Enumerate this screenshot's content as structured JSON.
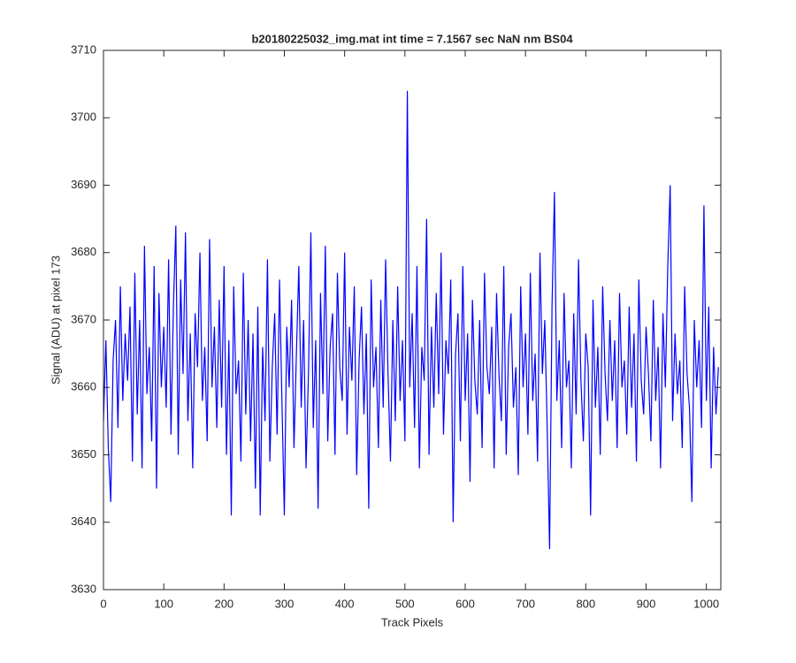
{
  "chart_data": {
    "type": "line",
    "title": "b20180225032_img.mat int time = 7.1567 sec  NaN nm BS04",
    "xlabel": "Track Pixels",
    "ylabel": "Signal (ADU) at pixel 173",
    "color": "#0000ff",
    "xlim": [
      0,
      1024
    ],
    "xticks": [
      0,
      100,
      200,
      300,
      400,
      500,
      600,
      700,
      800,
      900,
      1000
    ],
    "ylim": [
      3630,
      3710
    ],
    "yticks": [
      3630,
      3640,
      3650,
      3660,
      3670,
      3680,
      3690,
      3700,
      3710
    ],
    "grid": false,
    "x": [
      0,
      4,
      8,
      12,
      16,
      20,
      24,
      28,
      32,
      36,
      40,
      44,
      48,
      52,
      56,
      60,
      64,
      68,
      72,
      76,
      80,
      84,
      88,
      92,
      96,
      100,
      104,
      108,
      112,
      116,
      120,
      124,
      128,
      132,
      136,
      140,
      144,
      148,
      152,
      156,
      160,
      164,
      168,
      172,
      176,
      180,
      184,
      188,
      192,
      196,
      200,
      204,
      208,
      212,
      216,
      220,
      224,
      228,
      232,
      236,
      240,
      244,
      248,
      252,
      256,
      260,
      264,
      268,
      272,
      276,
      280,
      284,
      288,
      292,
      296,
      300,
      304,
      308,
      312,
      316,
      320,
      324,
      328,
      332,
      336,
      340,
      344,
      348,
      352,
      356,
      360,
      364,
      368,
      372,
      376,
      380,
      384,
      388,
      392,
      396,
      400,
      404,
      408,
      412,
      416,
      420,
      424,
      428,
      432,
      436,
      440,
      444,
      448,
      452,
      456,
      460,
      464,
      468,
      472,
      476,
      480,
      484,
      488,
      492,
      496,
      500,
      504,
      508,
      512,
      516,
      520,
      524,
      528,
      532,
      536,
      540,
      544,
      548,
      552,
      556,
      560,
      564,
      568,
      572,
      576,
      580,
      584,
      588,
      592,
      596,
      600,
      604,
      608,
      612,
      616,
      620,
      624,
      628,
      632,
      636,
      640,
      644,
      648,
      652,
      656,
      660,
      664,
      668,
      672,
      676,
      680,
      684,
      688,
      692,
      696,
      700,
      704,
      708,
      712,
      716,
      720,
      724,
      728,
      732,
      736,
      740,
      744,
      748,
      752,
      756,
      760,
      764,
      768,
      772,
      776,
      780,
      784,
      788,
      792,
      796,
      800,
      804,
      808,
      812,
      816,
      820,
      824,
      828,
      832,
      836,
      840,
      844,
      848,
      852,
      856,
      860,
      864,
      868,
      872,
      876,
      880,
      884,
      888,
      892,
      896,
      900,
      904,
      908,
      912,
      916,
      920,
      924,
      928,
      932,
      936,
      940,
      944,
      948,
      952,
      956,
      960,
      964,
      968,
      972,
      976,
      980,
      984,
      988,
      992,
      996,
      1000,
      1004,
      1008,
      1012,
      1016,
      1020
    ],
    "values": [
      3655,
      3667,
      3651,
      3643,
      3664,
      3670,
      3654,
      3675,
      3658,
      3668,
      3661,
      3672,
      3649,
      3677,
      3656,
      3670,
      3648,
      3681,
      3659,
      3666,
      3652,
      3678,
      3645,
      3674,
      3660,
      3669,
      3657,
      3679,
      3653,
      3672,
      3684,
      3650,
      3676,
      3662,
      3683,
      3655,
      3668,
      3648,
      3671,
      3663,
      3680,
      3658,
      3666,
      3652,
      3682,
      3660,
      3669,
      3654,
      3673,
      3657,
      3678,
      3650,
      3667,
      3641,
      3675,
      3659,
      3664,
      3649,
      3677,
      3656,
      3670,
      3652,
      3668,
      3645,
      3672,
      3641,
      3666,
      3655,
      3679,
      3649,
      3663,
      3671,
      3653,
      3676,
      3658,
      3641,
      3669,
      3660,
      3673,
      3651,
      3665,
      3678,
      3657,
      3670,
      3648,
      3662,
      3683,
      3654,
      3667,
      3642,
      3674,
      3659,
      3681,
      3652,
      3666,
      3671,
      3650,
      3677,
      3663,
      3658,
      3680,
      3653,
      3669,
      3661,
      3675,
      3647,
      3664,
      3672,
      3656,
      3668,
      3642,
      3676,
      3660,
      3666,
      3651,
      3673,
      3657,
      3679,
      3662,
      3649,
      3670,
      3655,
      3675,
      3658,
      3667,
      3652,
      3704,
      3660,
      3671,
      3654,
      3678,
      3648,
      3666,
      3661,
      3685,
      3650,
      3669,
      3657,
      3674,
      3659,
      3680,
      3653,
      3667,
      3662,
      3676,
      3640,
      3665,
      3671,
      3652,
      3678,
      3658,
      3668,
      3646,
      3673,
      3661,
      3656,
      3670,
      3651,
      3677,
      3663,
      3659,
      3669,
      3648,
      3674,
      3662,
      3655,
      3678,
      3650,
      3666,
      3671,
      3657,
      3663,
      3647,
      3675,
      3660,
      3668,
      3653,
      3677,
      3658,
      3665,
      3649,
      3680,
      3662,
      3670,
      3654,
      3636,
      3672,
      3689,
      3658,
      3667,
      3651,
      3674,
      3660,
      3664,
      3648,
      3671,
      3656,
      3679,
      3661,
      3652,
      3668,
      3663,
      3641,
      3673,
      3657,
      3666,
      3650,
      3675,
      3662,
      3655,
      3670,
      3658,
      3667,
      3651,
      3674,
      3660,
      3664,
      3653,
      3672,
      3657,
      3668,
      3649,
      3676,
      3661,
      3656,
      3669,
      3662,
      3652,
      3673,
      3658,
      3666,
      3648,
      3671,
      3660,
      3678,
      3690,
      3655,
      3668,
      3659,
      3664,
      3651,
      3675,
      3662,
      3657,
      3643,
      3670,
      3660,
      3667,
      3654,
      3687,
      3658,
      3672,
      3648,
      3666,
      3656,
      3663
    ]
  }
}
